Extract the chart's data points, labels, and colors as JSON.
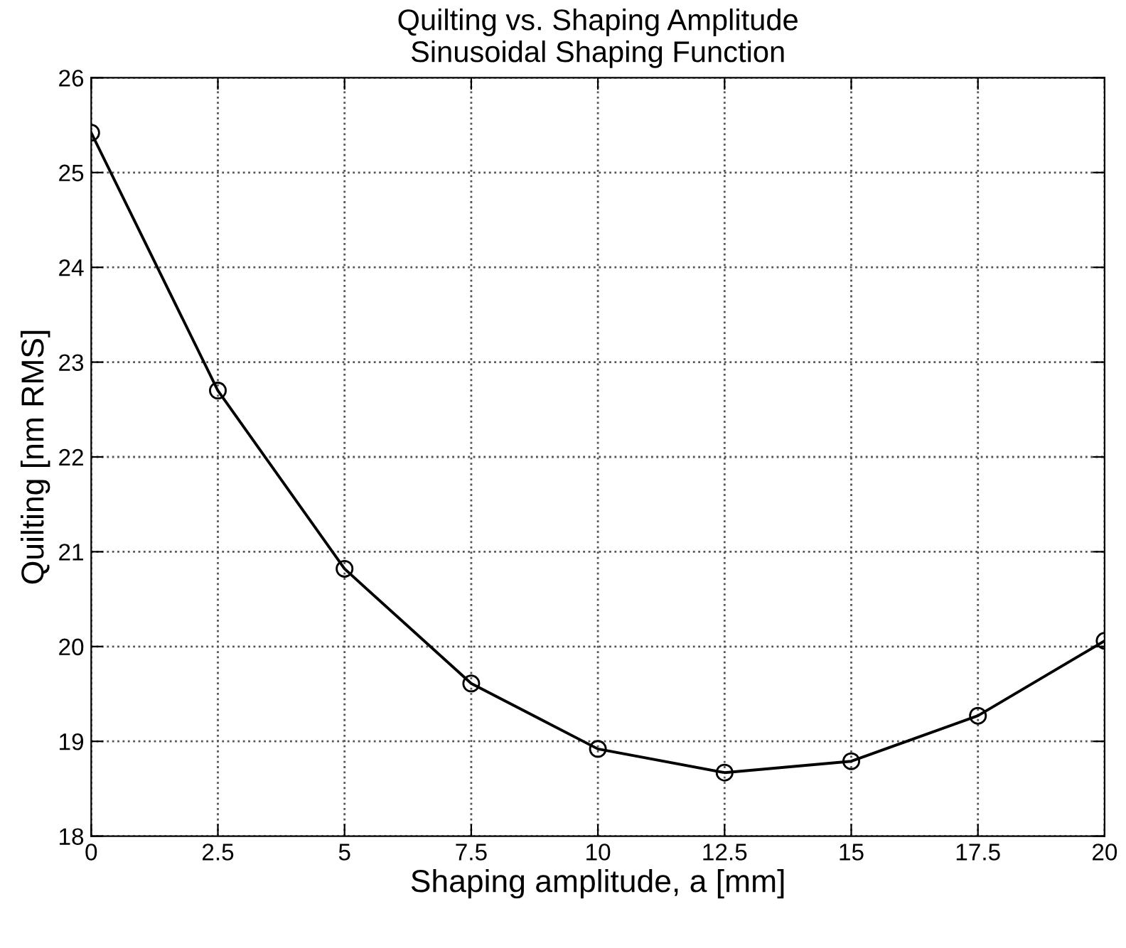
{
  "chart_data": {
    "type": "line",
    "title": "Quilting vs. Shaping Amplitude\nSinusoidal Shaping Function",
    "xlabel": "Shaping amplitude, a [mm]",
    "ylabel": "Quilting [nm RMS]",
    "x": [
      0,
      2.5,
      5,
      7.5,
      10,
      12.5,
      15,
      17.5,
      20
    ],
    "series": [
      {
        "color": "#000000",
        "values": [
          25.42,
          22.7,
          20.82,
          19.61,
          18.92,
          18.67,
          18.79,
          19.27,
          20.06
        ]
      }
    ],
    "xlim": [
      0,
      20
    ],
    "ylim": [
      18,
      26
    ],
    "xticks": [
      0,
      2.5,
      5,
      7.5,
      10,
      12.5,
      15,
      17.5,
      20
    ],
    "yticks": [
      18,
      19,
      20,
      21,
      22,
      23,
      24,
      25,
      26
    ],
    "grid": true,
    "marker": "circle",
    "line_style": "solid"
  }
}
